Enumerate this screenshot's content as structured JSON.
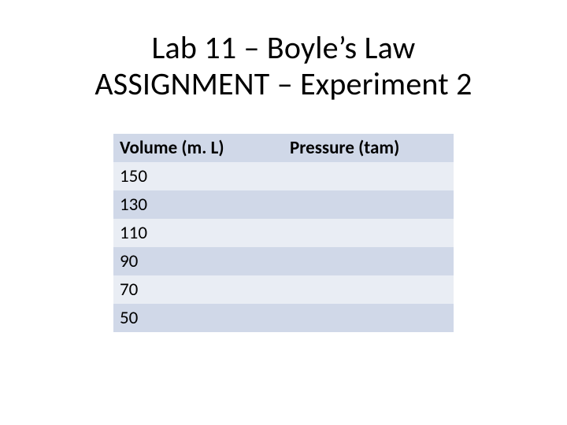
{
  "title": {
    "line1": "Lab 11 – Boyle’s Law",
    "line2": "ASSIGNMENT – Experiment 2",
    "fontsize": 40,
    "color": "#000000"
  },
  "table": {
    "type": "table",
    "columns": [
      "Volume (m. L)",
      "Pressure (tam)"
    ],
    "rows": [
      [
        "150",
        ""
      ],
      [
        "130",
        ""
      ],
      [
        "110",
        ""
      ],
      [
        "90",
        ""
      ],
      [
        "70",
        ""
      ],
      [
        "50",
        ""
      ]
    ],
    "header_bg": "#d0d8e8",
    "row_odd_bg": "#e9edf4",
    "row_even_bg": "#d0d8e8",
    "cell_fontsize": 23,
    "header_fontweight": 700,
    "text_color": "#000000",
    "column_widths_pct": [
      50,
      50
    ]
  },
  "background_color": "#ffffff"
}
